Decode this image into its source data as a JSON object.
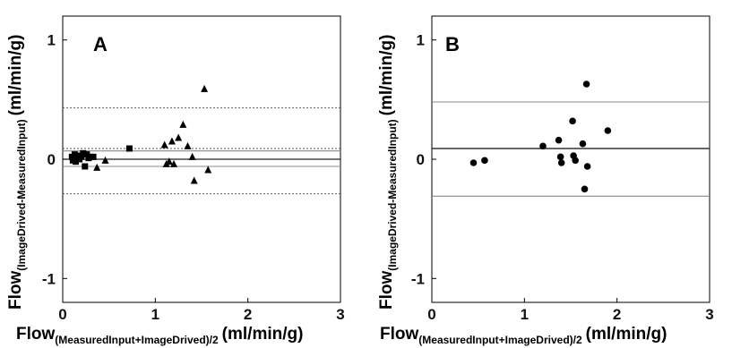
{
  "chart_data": [
    {
      "type": "scatter",
      "panel_label": "A",
      "xlim": [
        0,
        3
      ],
      "ylim": [
        -1.2,
        1.2
      ],
      "x_ticks": [
        "0",
        "1",
        "2",
        "3"
      ],
      "y_ticks": [
        "1",
        "0",
        "-1"
      ],
      "xlabel": {
        "main": "Flow",
        "sub": "(MeasuredInput+ImageDrived)/2",
        "unit": "(ml/min/g)"
      },
      "ylabel": {
        "main": "Flow",
        "sub": "(ImageDrived-MeasuredInput)",
        "unit": "(ml/min/g)"
      },
      "reference_lines": [
        {
          "y": 0.43,
          "style": "dotted"
        },
        {
          "y": 0.09,
          "style": "dotted"
        },
        {
          "y": 0.07,
          "style": "solid"
        },
        {
          "y": 0.0,
          "style": "solid"
        },
        {
          "y": -0.06,
          "style": "solid"
        },
        {
          "y": -0.29,
          "style": "dotted"
        }
      ],
      "series": [
        {
          "marker": "square",
          "points": [
            [
              0.1,
              0.02
            ],
            [
              0.11,
              -0.01
            ],
            [
              0.12,
              0.01
            ],
            [
              0.13,
              0.04
            ],
            [
              0.14,
              -0.02
            ],
            [
              0.16,
              0.03
            ],
            [
              0.18,
              0.0
            ],
            [
              0.2,
              0.02
            ],
            [
              0.22,
              0.05
            ],
            [
              0.24,
              -0.06
            ],
            [
              0.26,
              0.04
            ],
            [
              0.28,
              0.01
            ],
            [
              0.3,
              0.02
            ],
            [
              0.33,
              0.02
            ],
            [
              0.72,
              0.09
            ]
          ]
        },
        {
          "marker": "triangle",
          "points": [
            [
              0.37,
              -0.07
            ],
            [
              0.46,
              -0.01
            ],
            [
              1.1,
              0.12
            ],
            [
              1.12,
              -0.04
            ],
            [
              1.15,
              -0.02
            ],
            [
              1.18,
              0.15
            ],
            [
              1.2,
              -0.04
            ],
            [
              1.25,
              0.18
            ],
            [
              1.3,
              0.29
            ],
            [
              1.35,
              0.11
            ],
            [
              1.4,
              0.02
            ],
            [
              1.42,
              -0.18
            ],
            [
              1.53,
              0.59
            ],
            [
              1.57,
              -0.09
            ]
          ]
        }
      ]
    },
    {
      "type": "scatter",
      "panel_label": "B",
      "xlim": [
        0,
        3
      ],
      "ylim": [
        -1.2,
        1.2
      ],
      "x_ticks": [
        "0",
        "1",
        "2",
        "3"
      ],
      "y_ticks": [
        "1",
        "0",
        "-1"
      ],
      "xlabel": {
        "main": "Flow",
        "sub": "(MeasuredInput+ImageDrived)/2",
        "unit": "(ml/min/g)"
      },
      "ylabel": {
        "main": "Flow",
        "sub": "(ImageDrived-MeasuredInput)",
        "unit": "(ml/min/g)"
      },
      "reference_lines": [
        {
          "y": 0.48,
          "style": "solid"
        },
        {
          "y": 0.09,
          "style": "solid-dark"
        },
        {
          "y": -0.31,
          "style": "solid"
        }
      ],
      "series": [
        {
          "marker": "circle",
          "points": [
            [
              0.45,
              -0.03
            ],
            [
              0.57,
              -0.01
            ],
            [
              1.2,
              0.11
            ],
            [
              1.37,
              0.16
            ],
            [
              1.39,
              0.02
            ],
            [
              1.4,
              -0.03
            ],
            [
              1.52,
              0.32
            ],
            [
              1.55,
              -0.01
            ],
            [
              1.63,
              0.13
            ],
            [
              1.65,
              -0.25
            ],
            [
              1.67,
              0.63
            ],
            [
              1.68,
              -0.06
            ],
            [
              1.9,
              0.24
            ],
            [
              1.53,
              0.03
            ]
          ]
        }
      ]
    }
  ]
}
